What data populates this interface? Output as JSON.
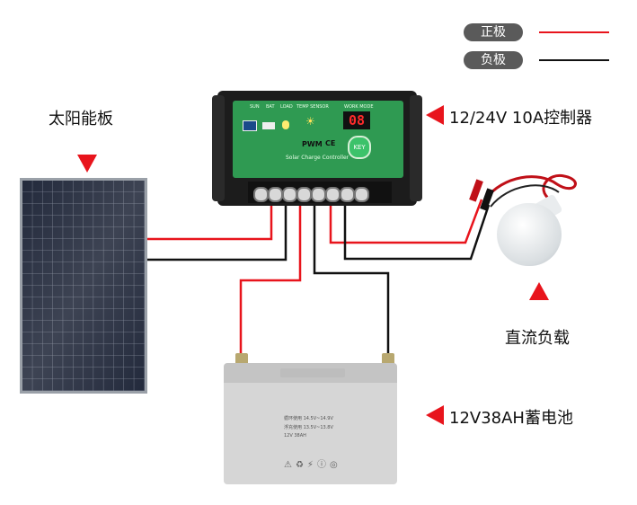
{
  "legend": {
    "positive_label": "正极",
    "negative_label": "负极",
    "positive_color": "#e8141c",
    "negative_color": "#111111"
  },
  "labels": {
    "solar_panel": "太阳能板",
    "controller": "12/24V 10A控制器",
    "dc_load": "直流负载",
    "battery": "12V38AH蓄电池"
  },
  "controller": {
    "display": "08",
    "pwm": "PWM",
    "ce": "CE",
    "key": "KEY",
    "header_items": [
      "SUN",
      "BAT",
      "LOAD",
      "TEMP SENSOR"
    ],
    "work_mode": "WORK MODE",
    "subtitle": "Solar Charge Controller"
  },
  "battery_text": {
    "line1": "循环使用    14.5V~14.9V",
    "line2": "浮充使用    13.5V~13.8V",
    "line3": "12V  38AH"
  },
  "colors": {
    "arrow": "#e8141c",
    "controller_panel": "#2f9a52",
    "wire_red": "#e8141c",
    "wire_black": "#111111"
  }
}
